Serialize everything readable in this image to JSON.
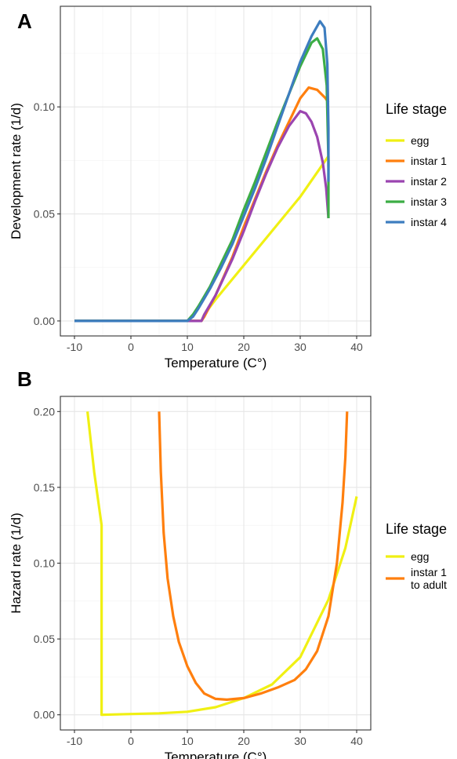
{
  "chart_data": [
    {
      "type": "line",
      "panel_label": "A",
      "xlabel": "Temperature (C°)",
      "ylabel": "Development rate (1/d)",
      "xlim": [
        -12.5,
        42.5
      ],
      "ylim": [
        -0.007,
        0.147
      ],
      "x_ticks": [
        -10,
        0,
        10,
        20,
        30,
        40
      ],
      "x_tick_labels": [
        "-10",
        "0",
        "10",
        "20",
        "30",
        "40"
      ],
      "y_ticks": [
        0,
        0.05,
        0.1
      ],
      "y_tick_labels": [
        "0.00",
        "0.05",
        "0.10"
      ],
      "grid": true,
      "legend": {
        "title": "Life stage",
        "position": "right"
      },
      "series": [
        {
          "name": "egg",
          "color": "#f0f013",
          "points": [
            [
              -10,
              0
            ],
            [
              12.5,
              0
            ],
            [
              13,
              0.003
            ],
            [
              15,
              0.01
            ],
            [
              20,
              0.026
            ],
            [
              25,
              0.042
            ],
            [
              30,
              0.058
            ],
            [
              35,
              0.077
            ],
            [
              35,
              0.072
            ]
          ]
        },
        {
          "name": "instar 1",
          "color": "#ff7f0e",
          "points": [
            [
              -10,
              0
            ],
            [
              12.5,
              0
            ],
            [
              13,
              0.002
            ],
            [
              15,
              0.012
            ],
            [
              18,
              0.03
            ],
            [
              20,
              0.044
            ],
            [
              22,
              0.057
            ],
            [
              24,
              0.07
            ],
            [
              26,
              0.082
            ],
            [
              28,
              0.093
            ],
            [
              30,
              0.104
            ],
            [
              31.5,
              0.109
            ],
            [
              33,
              0.108
            ],
            [
              34.5,
              0.104
            ],
            [
              35,
              0.102
            ]
          ]
        },
        {
          "name": "instar 2",
          "color": "#9b45b0",
          "points": [
            [
              -10,
              0
            ],
            [
              12.5,
              0
            ],
            [
              13,
              0.003
            ],
            [
              15,
              0.012
            ],
            [
              18,
              0.029
            ],
            [
              20,
              0.042
            ],
            [
              22,
              0.056
            ],
            [
              24,
              0.069
            ],
            [
              26,
              0.081
            ],
            [
              28,
              0.091
            ],
            [
              30,
              0.098
            ],
            [
              31,
              0.097
            ],
            [
              32,
              0.093
            ],
            [
              33,
              0.086
            ],
            [
              34,
              0.074
            ],
            [
              34.6,
              0.062
            ],
            [
              35,
              0.048
            ]
          ]
        },
        {
          "name": "instar 3",
          "color": "#3cad45",
          "points": [
            [
              -10,
              0
            ],
            [
              10,
              0
            ],
            [
              11,
              0.003
            ],
            [
              12,
              0.007
            ],
            [
              14,
              0.016
            ],
            [
              16,
              0.027
            ],
            [
              18,
              0.038
            ],
            [
              20,
              0.052
            ],
            [
              22,
              0.065
            ],
            [
              24,
              0.079
            ],
            [
              26,
              0.093
            ],
            [
              28,
              0.106
            ],
            [
              30,
              0.119
            ],
            [
              32,
              0.13
            ],
            [
              33,
              0.132
            ],
            [
              34,
              0.127
            ],
            [
              34.7,
              0.11
            ],
            [
              35,
              0.075
            ],
            [
              35,
              0.048
            ]
          ]
        },
        {
          "name": "instar 4",
          "color": "#3d7dbf",
          "points": [
            [
              -10,
              0
            ],
            [
              10,
              0
            ],
            [
              11,
              0.002
            ],
            [
              12,
              0.006
            ],
            [
              14,
              0.015
            ],
            [
              16,
              0.025
            ],
            [
              18,
              0.036
            ],
            [
              20,
              0.049
            ],
            [
              22,
              0.062
            ],
            [
              24,
              0.076
            ],
            [
              26,
              0.091
            ],
            [
              28,
              0.106
            ],
            [
              30,
              0.121
            ],
            [
              32,
              0.133
            ],
            [
              33.5,
              0.14
            ],
            [
              34.3,
              0.137
            ],
            [
              34.8,
              0.12
            ],
            [
              35,
              0.09
            ],
            [
              35,
              0.065
            ]
          ]
        }
      ]
    },
    {
      "type": "line",
      "panel_label": "B",
      "xlabel": "Temperature (C°)",
      "ylabel": "Hazard rate (1/d)",
      "xlim": [
        -12.5,
        42.5
      ],
      "ylim": [
        -0.01,
        0.21
      ],
      "x_ticks": [
        -10,
        0,
        10,
        20,
        30,
        40
      ],
      "x_tick_labels": [
        "-10",
        "0",
        "10",
        "20",
        "30",
        "40"
      ],
      "y_ticks": [
        0,
        0.05,
        0.1,
        0.15,
        0.2
      ],
      "y_tick_labels": [
        "0.00",
        "0.05",
        "0.10",
        "0.15",
        "0.20"
      ],
      "grid": true,
      "legend": {
        "title": "Life stage",
        "position": "right"
      },
      "series": [
        {
          "name": "egg",
          "color": "#f0f013",
          "points": [
            [
              -7.7,
              0.2
            ],
            [
              -6.5,
              0.16
            ],
            [
              -5.2,
              0.125
            ],
            [
              -5.2,
              0
            ],
            [
              0,
              0.0005
            ],
            [
              5,
              0.001
            ],
            [
              10,
              0.002
            ],
            [
              15,
              0.005
            ],
            [
              20,
              0.011
            ],
            [
              25,
              0.02
            ],
            [
              30,
              0.038
            ],
            [
              35,
              0.076
            ],
            [
              38,
              0.11
            ],
            [
              40,
              0.144
            ]
          ]
        },
        {
          "name": "instar 1\nto adult",
          "color": "#ff7f0e",
          "points": [
            [
              5,
              0.2
            ],
            [
              5.3,
              0.16
            ],
            [
              5.8,
              0.12
            ],
            [
              6.5,
              0.09
            ],
            [
              7.5,
              0.065
            ],
            [
              8.5,
              0.048
            ],
            [
              10,
              0.032
            ],
            [
              11.5,
              0.021
            ],
            [
              13,
              0.014
            ],
            [
              15,
              0.0105
            ],
            [
              17,
              0.01
            ],
            [
              20,
              0.011
            ],
            [
              23,
              0.014
            ],
            [
              26,
              0.018
            ],
            [
              29,
              0.023
            ],
            [
              31,
              0.03
            ],
            [
              33,
              0.042
            ],
            [
              35,
              0.065
            ],
            [
              36.5,
              0.1
            ],
            [
              37.5,
              0.14
            ],
            [
              38,
              0.17
            ],
            [
              38.3,
              0.2
            ]
          ]
        }
      ]
    }
  ]
}
